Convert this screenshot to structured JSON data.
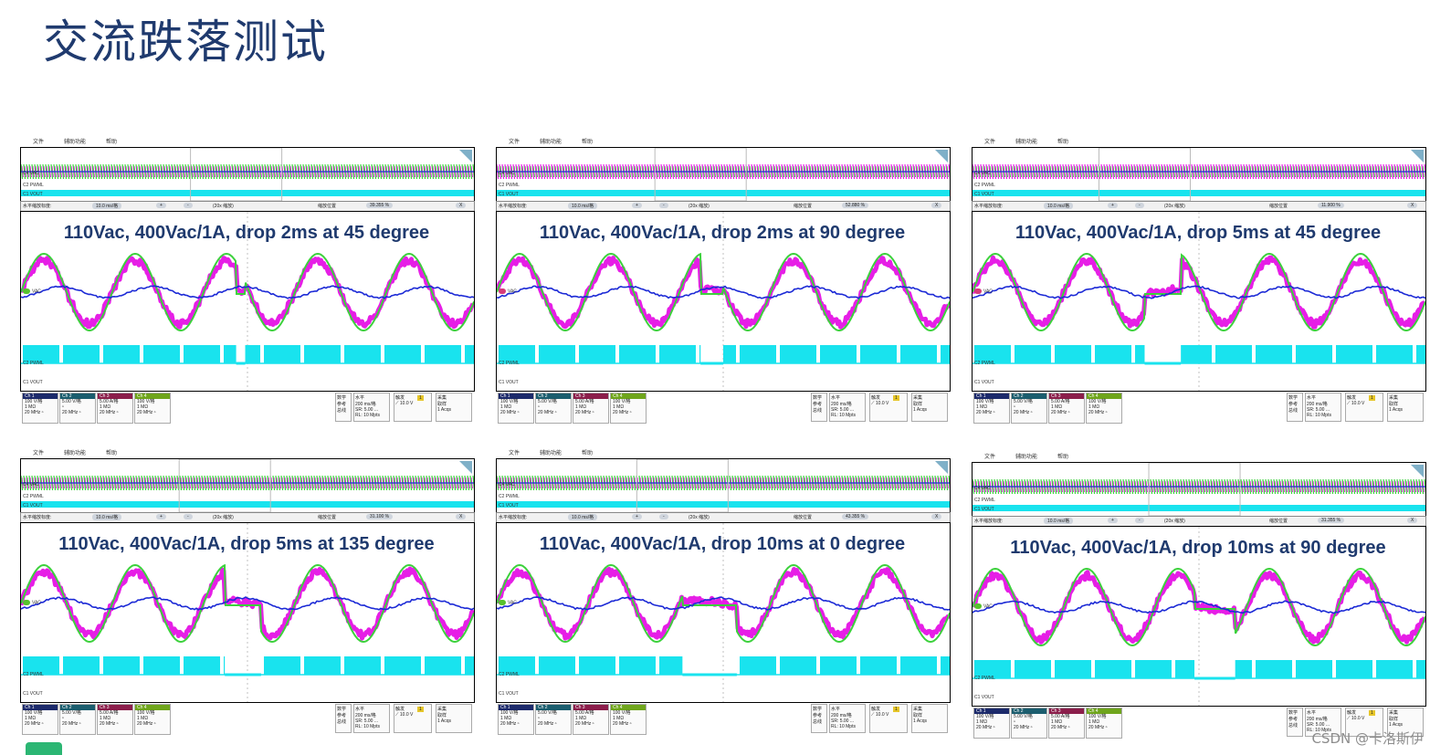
{
  "title": "交流跌落测试",
  "menu": {
    "file": "文件",
    "utility": "辅助功能",
    "help": "帮助"
  },
  "zoom": {
    "label": "水平缩放标度:",
    "scale": "10.0 ms/格",
    "plus": "+",
    "minus": "-",
    "factor": "(20x 缩放)",
    "pos_label": "缩放位置",
    "close": "X"
  },
  "channel_labels": {
    "vac": "VAC",
    "pwm": "PWML",
    "vout": "VOUT"
  },
  "channels": [
    {
      "name": "Ch 1",
      "l1": "100 V/格",
      "l2": "1 MΩ",
      "l3": "20 MHz ⁿ",
      "color": "#1c2a6b"
    },
    {
      "name": "Ch 2",
      "l1": "5.00 V/格",
      "l2": "ⁿ",
      "l3": "20 MHz ⁿ",
      "color": "#1b5d6e"
    },
    {
      "name": "Ch 3",
      "l1": "5.00 A/格",
      "l2": "1 MΩ",
      "l3": "20 MHz ⁿ",
      "color": "#8b1e4b"
    },
    {
      "name": "Ch 4",
      "l1": "100 V/格",
      "l2": "1 MΩ",
      "l3": "20 MHz ⁿ",
      "color": "#6fa51c"
    }
  ],
  "math": {
    "l1": "数学",
    "l2": "参考",
    "l3": "总线"
  },
  "horizontal": {
    "hd": "水平",
    "l1": "200 ms/格",
    "l2": "SR: 5.00 ...",
    "l3": "RL: 10 Mpts"
  },
  "trigger": {
    "hd": "触发",
    "num": "1",
    "l1": "10.0 V"
  },
  "acquire": {
    "hd": "采集",
    "l1": "取样",
    "l2": "1 Acqs"
  },
  "scopes": [
    {
      "caption": "110Vac, 400Vac/1A,  drop 2ms at 45 degree",
      "zoom_pos": "39.355 %",
      "drop_start": 0.475,
      "drop_len": 0.02,
      "ch4_label_color": "#57c22d"
    },
    {
      "caption": "110Vac, 400Vac/1A,  drop 2ms at 90 degree",
      "zoom_pos": "52.880 %",
      "drop_start": 0.45,
      "drop_len": 0.05,
      "ch4_label_color": "#d63a7a"
    },
    {
      "caption": "110Vac, 400Vac/1A,  drop 5ms at 45 degree",
      "zoom_pos": "11.900 %",
      "drop_start": 0.38,
      "drop_len": 0.08,
      "ch4_label_color": "#d63a7a"
    },
    {
      "caption": "110Vac, 400Vac/1A,  drop 5ms at 135 degree",
      "zoom_pos": "31.100 %",
      "drop_start": 0.45,
      "drop_len": 0.08,
      "ch4_label_color": "#57c22d"
    },
    {
      "caption": "110Vac, 400Vac/1A,  drop 10ms at 0 degree",
      "zoom_pos": "43.355 %",
      "drop_start": 0.41,
      "drop_len": 0.12,
      "ch4_label_color": "#57c22d"
    },
    {
      "caption": "110Vac, 400Vac/1A,  drop 10ms at 90 degree",
      "zoom_pos": "31.355 %",
      "drop_start": 0.49,
      "drop_len": 0.09,
      "ch4_label_color": "#57c22d"
    }
  ],
  "watermark": "CSDN @卡洛斯伊",
  "colors": {
    "green": "#3cd13c",
    "magenta": "#e61ee6",
    "blue": "#1c2ad6",
    "cyan": "#19e3ee",
    "title": "#1f3a6e"
  }
}
